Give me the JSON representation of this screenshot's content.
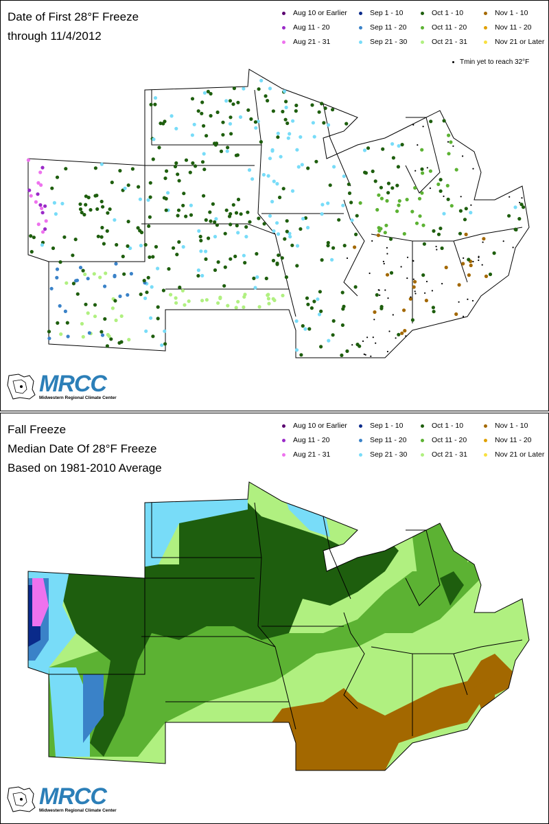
{
  "top_panel": {
    "title_line1": "Date of First 28°F Freeze",
    "title_line2": "through 11/4/2012",
    "tmin_note": "Tmin yet to reach 32°F"
  },
  "bottom_panel": {
    "title_line1": "Fall Freeze",
    "title_line2": "Median Date Of 28°F Freeze",
    "title_line3": "Based on 1981-2010 Average"
  },
  "legend": [
    {
      "label": "Aug 10 or Earlier",
      "color": "#5a0070"
    },
    {
      "label": "Sep 1 - 10",
      "color": "#0a2a8a"
    },
    {
      "label": "Oct 1 - 10",
      "color": "#1e5e0e"
    },
    {
      "label": "Nov 1 - 10",
      "color": "#a36800"
    },
    {
      "label": "Aug 11 - 20",
      "color": "#9a2ac8"
    },
    {
      "label": "Sep 11 - 20",
      "color": "#3a82c8"
    },
    {
      "label": "Oct 11 - 20",
      "color": "#5cb233"
    },
    {
      "label": "Nov 11 - 20",
      "color": "#e0a000"
    },
    {
      "label": "Aug 21 - 31",
      "color": "#ee72ee"
    },
    {
      "label": "Sep 21 - 30",
      "color": "#78dcf8"
    },
    {
      "label": "Oct 21 - 31",
      "color": "#b0f080"
    },
    {
      "label": "Nov 21 or Later",
      "color": "#f8e040"
    }
  ],
  "logo": {
    "word": "MRCC",
    "subtitle": "Midwestern Regional Climate Center"
  }
}
